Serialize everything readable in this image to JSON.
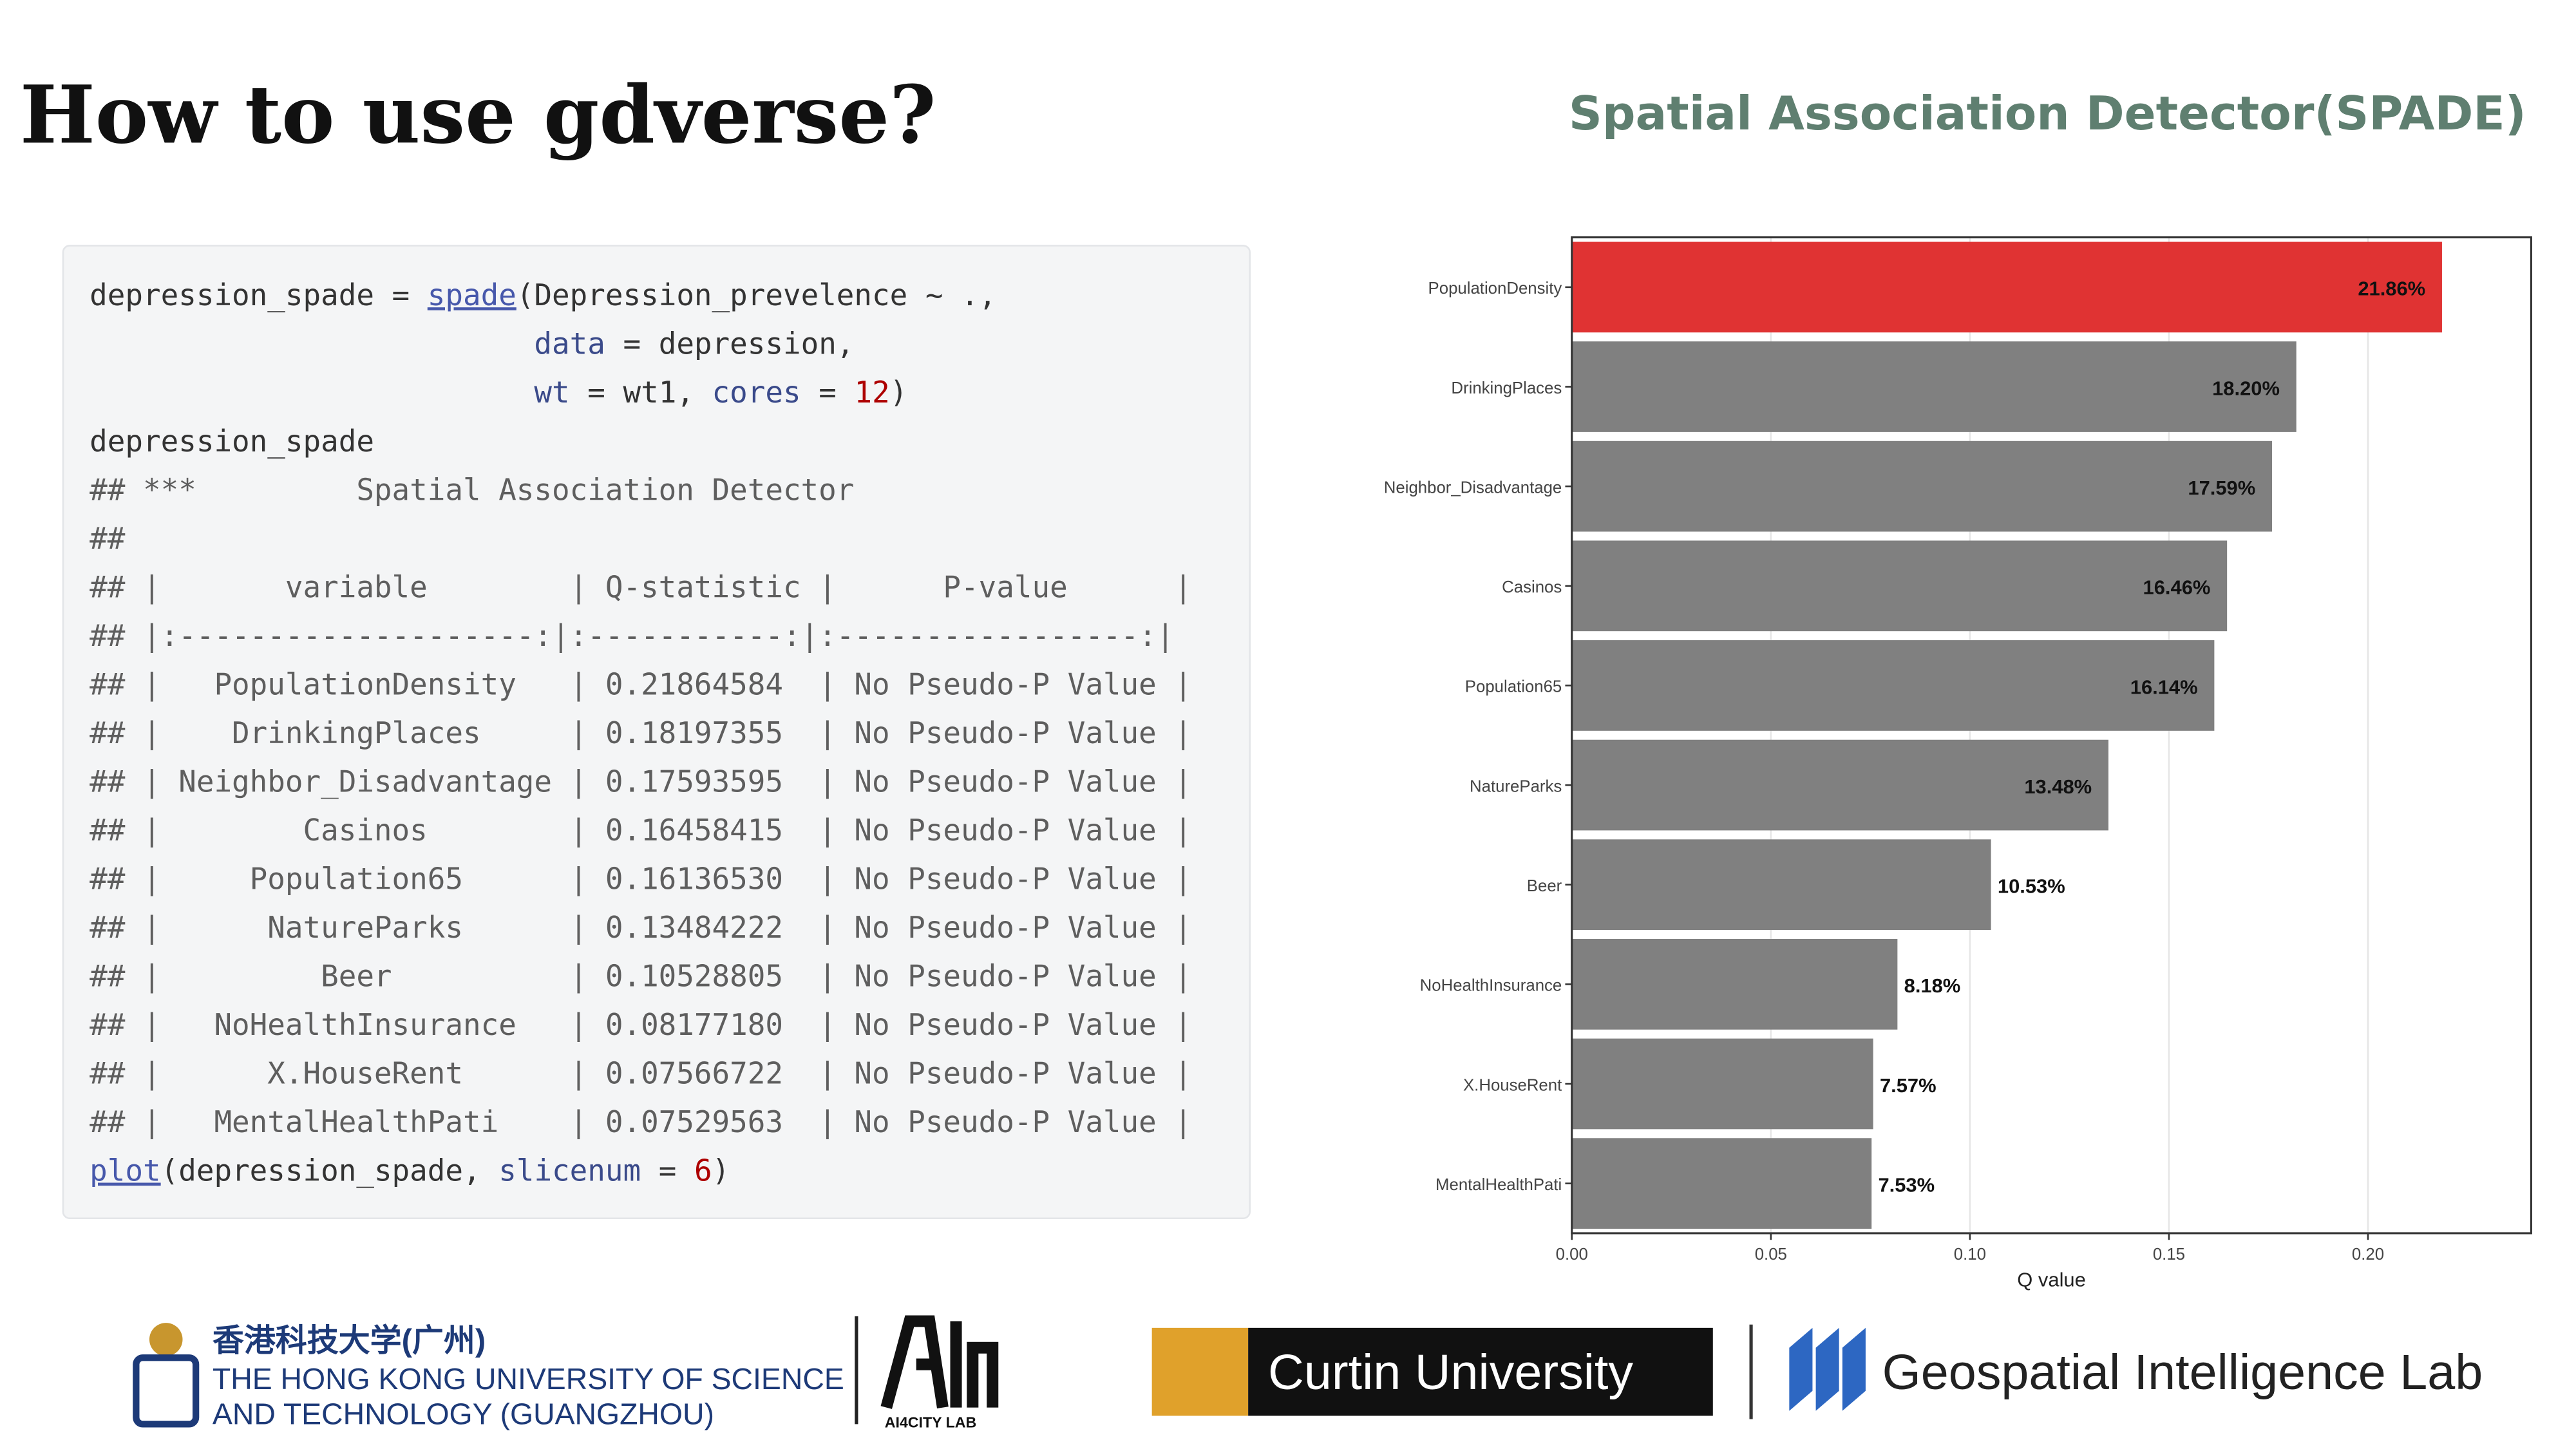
{
  "header": {
    "title": "How to use gdverse?",
    "subtitle": "Spatial Association Detector(SPADE)"
  },
  "code": {
    "lines": [
      [
        {
          "t": "depression_spade = "
        },
        {
          "t": "spade",
          "k": "fn"
        },
        {
          "t": "(Depression_prevelence ~ .,"
        }
      ],
      [
        {
          "t": "                         "
        },
        {
          "t": "data",
          "k": "arg"
        },
        {
          "t": " = depression,"
        }
      ],
      [
        {
          "t": "                         "
        },
        {
          "t": "wt",
          "k": "arg"
        },
        {
          "t": " = wt1, "
        },
        {
          "t": "cores",
          "k": "arg"
        },
        {
          "t": " = "
        },
        {
          "t": "12",
          "k": "num"
        },
        {
          "t": ")"
        }
      ],
      [
        {
          "t": "depression_spade"
        }
      ],
      [
        {
          "t": "## ***         Spatial Association Detector",
          "k": "out"
        }
      ],
      [
        {
          "t": "##",
          "k": "out"
        }
      ],
      [
        {
          "t": "## |       variable        | Q-statistic |      P-value      |",
          "k": "out"
        }
      ],
      [
        {
          "t": "## |:--------------------:|:-----------:|:-----------------:|",
          "k": "out"
        }
      ],
      [
        {
          "t": "## |   PopulationDensity   | 0.21864584  | No Pseudo-P Value |",
          "k": "out"
        }
      ],
      [
        {
          "t": "## |    DrinkingPlaces     | 0.18197355  | No Pseudo-P Value |",
          "k": "out"
        }
      ],
      [
        {
          "t": "## | Neighbor_Disadvantage | 0.17593595  | No Pseudo-P Value |",
          "k": "out"
        }
      ],
      [
        {
          "t": "## |        Casinos        | 0.16458415  | No Pseudo-P Value |",
          "k": "out"
        }
      ],
      [
        {
          "t": "## |     Population65      | 0.16136530  | No Pseudo-P Value |",
          "k": "out"
        }
      ],
      [
        {
          "t": "## |      NatureParks      | 0.13484222  | No Pseudo-P Value |",
          "k": "out"
        }
      ],
      [
        {
          "t": "## |         Beer          | 0.10528805  | No Pseudo-P Value |",
          "k": "out"
        }
      ],
      [
        {
          "t": "## |   NoHealthInsurance   | 0.08177180  | No Pseudo-P Value |",
          "k": "out"
        }
      ],
      [
        {
          "t": "## |      X.HouseRent      | 0.07566722  | No Pseudo-P Value |",
          "k": "out"
        }
      ],
      [
        {
          "t": "## |   MentalHealthPati    | 0.07529563  | No Pseudo-P Value |",
          "k": "out"
        }
      ],
      [
        {
          "t": "plot",
          "k": "fn"
        },
        {
          "t": "(depression_spade, "
        },
        {
          "t": "slicenum",
          "k": "arg"
        },
        {
          "t": " = "
        },
        {
          "t": "6",
          "k": "num"
        },
        {
          "t": ")"
        }
      ]
    ]
  },
  "chart_data": {
    "type": "bar",
    "orientation": "horizontal",
    "xlabel": "Q value",
    "categories": [
      "PopulationDensity",
      "DrinkingPlaces",
      "Neighbor_Disadvantage",
      "Casinos",
      "Population65",
      "NatureParks",
      "Beer",
      "NoHealthInsurance",
      "X.HouseRent",
      "MentalHealthPati"
    ],
    "values": [
      0.2186,
      0.182,
      0.1759,
      0.1646,
      0.1614,
      0.1348,
      0.1053,
      0.0818,
      0.0757,
      0.0753
    ],
    "value_labels": [
      "21.86%",
      "18.20%",
      "17.59%",
      "16.46%",
      "16.14%",
      "13.48%",
      "10.53%",
      "8.18%",
      "7.57%",
      "7.53%"
    ],
    "colors": [
      "#e03333",
      "#808080",
      "#808080",
      "#808080",
      "#808080",
      "#808080",
      "#808080",
      "#808080",
      "#808080",
      "#808080"
    ],
    "xlim": [
      0,
      0.241
    ],
    "xticks": [
      {
        "value": 0,
        "label": "0.00"
      },
      0.05,
      {
        "value": 0.1,
        "label": "0.10"
      },
      0.15,
      {
        "value": 0.2,
        "label": "0.20"
      }
    ],
    "grid": true
  },
  "footer": {
    "hkust_cn": "香港科技大学(广州)",
    "hkust_en1": "THE HONG KONG UNIVERSITY OF SCIENCE",
    "hkust_en2": "AND TECHNOLOGY (GUANGZHOU)",
    "ai4city": "AI4CITY LAB",
    "curtin": "Curtin University",
    "gil": "Geospatial Intelligence Lab"
  }
}
